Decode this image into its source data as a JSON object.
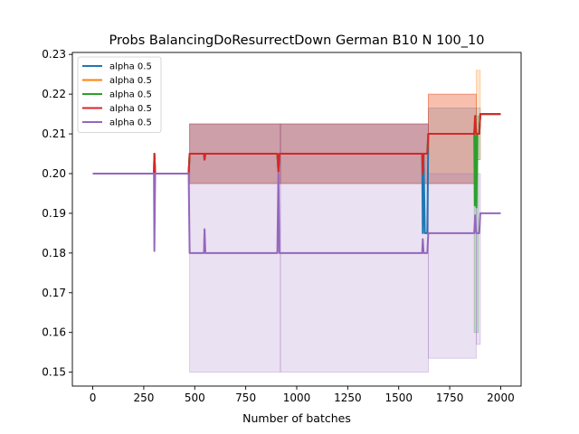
{
  "chart_data": {
    "type": "line",
    "title": "Probs BalancingDoResurrectDown German B10 N 100_10",
    "xlabel": "Number of batches",
    "ylabel": "",
    "xlim": [
      -100,
      2100
    ],
    "ylim": [
      0.1465,
      0.2305
    ],
    "x_ticks": [
      0,
      250,
      500,
      750,
      1000,
      1250,
      1500,
      1750,
      2000
    ],
    "x_tick_labels": [
      "0",
      "250",
      "500",
      "750",
      "1000",
      "1250",
      "1500",
      "1750",
      "2000"
    ],
    "y_ticks": [
      0.15,
      0.16,
      0.17,
      0.18,
      0.19,
      0.2,
      0.21,
      0.22,
      0.23
    ],
    "y_tick_labels": [
      "0.15",
      "0.16",
      "0.17",
      "0.18",
      "0.19",
      "0.20",
      "0.21",
      "0.22",
      "0.23"
    ],
    "grid": false,
    "legend_position": "top-left",
    "series": [
      {
        "name": "alpha 0.5",
        "color": "#1f77b4",
        "points": [
          [
            0,
            0.2
          ],
          [
            300,
            0.2
          ],
          [
            302,
            0.205
          ],
          [
            306,
            0.2
          ],
          [
            470,
            0.2
          ],
          [
            475,
            0.205
          ],
          [
            545,
            0.205
          ],
          [
            548,
            0.2035
          ],
          [
            552,
            0.205
          ],
          [
            905,
            0.205
          ],
          [
            910,
            0.2005
          ],
          [
            915,
            0.205
          ],
          [
            1615,
            0.205
          ],
          [
            1618,
            0.185
          ],
          [
            1622,
            0.2045
          ],
          [
            1628,
            0.185
          ],
          [
            1640,
            0.185
          ],
          [
            1645,
            0.21
          ],
          [
            1870,
            0.21
          ],
          [
            1875,
            0.2145
          ],
          [
            1880,
            0.21
          ],
          [
            1895,
            0.21
          ],
          [
            1900,
            0.215
          ],
          [
            2000,
            0.215
          ]
        ],
        "band": [
          [
            475,
            0.1975,
            0.2125
          ],
          [
            920,
            0.1975,
            0.2125
          ],
          [
            1645,
            0.1975,
            0.2165
          ],
          [
            1880,
            0.2035,
            0.2165
          ],
          [
            1900,
            0.2035,
            0.223
          ]
        ]
      },
      {
        "name": "alpha 0.5",
        "color": "#ff7f0e",
        "points": [
          [
            0,
            0.2
          ],
          [
            300,
            0.2
          ],
          [
            302,
            0.205
          ],
          [
            306,
            0.2
          ],
          [
            470,
            0.2
          ],
          [
            475,
            0.205
          ],
          [
            545,
            0.205
          ],
          [
            548,
            0.2035
          ],
          [
            552,
            0.205
          ],
          [
            905,
            0.205
          ],
          [
            910,
            0.2005
          ],
          [
            915,
            0.205
          ],
          [
            1615,
            0.205
          ],
          [
            1618,
            0.2
          ],
          [
            1622,
            0.205
          ],
          [
            1640,
            0.205
          ],
          [
            1645,
            0.21
          ],
          [
            1870,
            0.21
          ],
          [
            1875,
            0.2145
          ],
          [
            1880,
            0.21
          ],
          [
            1895,
            0.21
          ],
          [
            1900,
            0.215
          ],
          [
            2000,
            0.215
          ]
        ],
        "band": [
          [
            475,
            0.1975,
            0.2125
          ],
          [
            920,
            0.1975,
            0.2125
          ],
          [
            1645,
            0.1975,
            0.22
          ],
          [
            1880,
            0.2035,
            0.226
          ],
          [
            1900,
            0.2035,
            0.226
          ]
        ]
      },
      {
        "name": "alpha 0.5",
        "color": "#2ca02c",
        "points": [
          [
            0,
            0.2
          ],
          [
            300,
            0.2
          ],
          [
            302,
            0.205
          ],
          [
            306,
            0.2
          ],
          [
            470,
            0.2
          ],
          [
            475,
            0.205
          ],
          [
            545,
            0.205
          ],
          [
            548,
            0.2035
          ],
          [
            552,
            0.205
          ],
          [
            905,
            0.205
          ],
          [
            910,
            0.2005
          ],
          [
            915,
            0.205
          ],
          [
            1615,
            0.205
          ],
          [
            1618,
            0.2
          ],
          [
            1622,
            0.205
          ],
          [
            1640,
            0.205
          ],
          [
            1645,
            0.21
          ],
          [
            1870,
            0.21
          ],
          [
            1873,
            0.192
          ],
          [
            1877,
            0.2095
          ],
          [
            1881,
            0.1915
          ],
          [
            1885,
            0.21
          ],
          [
            1895,
            0.21
          ],
          [
            1900,
            0.215
          ],
          [
            2000,
            0.215
          ]
        ],
        "band": [
          [
            1870,
            0.16,
            0.2145
          ],
          [
            1890,
            0.16,
            0.2145
          ]
        ]
      },
      {
        "name": "alpha 0.5",
        "color": "#d62728",
        "points": [
          [
            0,
            0.2
          ],
          [
            300,
            0.2
          ],
          [
            302,
            0.205
          ],
          [
            306,
            0.2
          ],
          [
            470,
            0.2
          ],
          [
            475,
            0.205
          ],
          [
            545,
            0.205
          ],
          [
            548,
            0.2035
          ],
          [
            552,
            0.205
          ],
          [
            905,
            0.205
          ],
          [
            910,
            0.2005
          ],
          [
            915,
            0.205
          ],
          [
            1615,
            0.205
          ],
          [
            1618,
            0.2
          ],
          [
            1622,
            0.205
          ],
          [
            1640,
            0.205
          ],
          [
            1645,
            0.21
          ],
          [
            1870,
            0.21
          ],
          [
            1875,
            0.2145
          ],
          [
            1880,
            0.21
          ],
          [
            1895,
            0.21
          ],
          [
            1900,
            0.215
          ],
          [
            2000,
            0.215
          ]
        ],
        "band": [
          [
            475,
            0.1975,
            0.2125
          ],
          [
            920,
            0.1975,
            0.2125
          ],
          [
            1645,
            0.1975,
            0.22
          ],
          [
            1880,
            0.2035,
            0.226
          ]
        ]
      },
      {
        "name": "alpha 0.5",
        "color": "#9467bd",
        "points": [
          [
            0,
            0.2
          ],
          [
            300,
            0.2
          ],
          [
            302,
            0.1805
          ],
          [
            306,
            0.2
          ],
          [
            470,
            0.2
          ],
          [
            475,
            0.18
          ],
          [
            545,
            0.18
          ],
          [
            548,
            0.186
          ],
          [
            552,
            0.18
          ],
          [
            905,
            0.18
          ],
          [
            910,
            0.2
          ],
          [
            915,
            0.18
          ],
          [
            1615,
            0.18
          ],
          [
            1618,
            0.1835
          ],
          [
            1622,
            0.18
          ],
          [
            1640,
            0.18
          ],
          [
            1645,
            0.185
          ],
          [
            1870,
            0.185
          ],
          [
            1875,
            0.1895
          ],
          [
            1880,
            0.185
          ],
          [
            1895,
            0.185
          ],
          [
            1900,
            0.19
          ],
          [
            2000,
            0.19
          ]
        ],
        "band": [
          [
            475,
            0.15,
            0.2125
          ],
          [
            920,
            0.15,
            0.2125
          ],
          [
            1645,
            0.1535,
            0.2
          ],
          [
            1880,
            0.157,
            0.2
          ],
          [
            1900,
            0.157,
            0.2
          ]
        ]
      }
    ]
  }
}
